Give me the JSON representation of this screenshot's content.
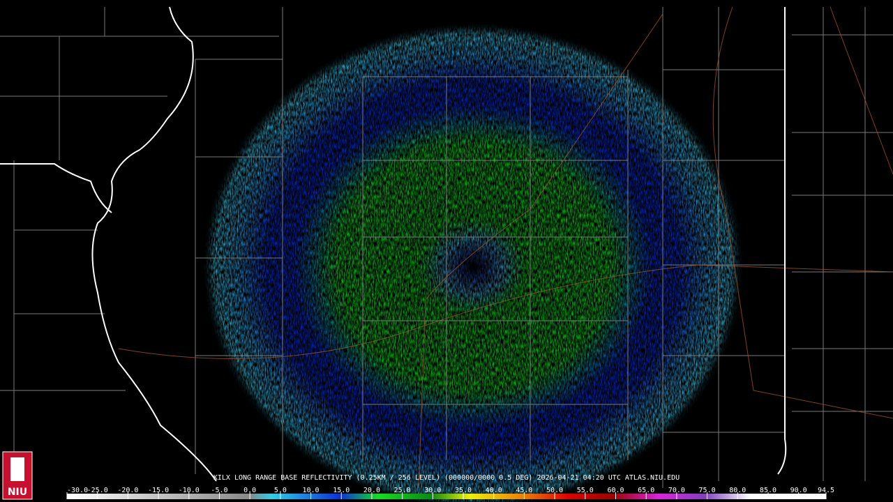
{
  "caption": "KILX LONG RANGE BASE REFLECTIVITY (0.25KM / 256 LEVEL) (000000/0000 0.5 DEG) 2026-04-21 04:20 UTC  ATLAS.NIU.EDU",
  "logo": "NIU",
  "colorbar": {
    "range": [
      -30,
      94.5
    ],
    "ticks": [
      {
        "value": -30,
        "label": "-30.0"
      },
      {
        "value": -25,
        "label": "-25.0"
      },
      {
        "value": -20,
        "label": "-20.0"
      },
      {
        "value": -15,
        "label": "-15.0"
      },
      {
        "value": -10,
        "label": "-10.0"
      },
      {
        "value": -5,
        "label": "-5.0"
      },
      {
        "value": 0,
        "label": "0.0"
      },
      {
        "value": 5,
        "label": "5.0"
      },
      {
        "value": 10,
        "label": "10.0"
      },
      {
        "value": 15,
        "label": "15.0"
      },
      {
        "value": 20,
        "label": "20.0"
      },
      {
        "value": 25,
        "label": "25.0"
      },
      {
        "value": 30,
        "label": "30.0"
      },
      {
        "value": 35,
        "label": "35.0"
      },
      {
        "value": 40,
        "label": "40.0"
      },
      {
        "value": 45,
        "label": "45.0"
      },
      {
        "value": 50,
        "label": "50.0"
      },
      {
        "value": 55,
        "label": "55.0"
      },
      {
        "value": 60,
        "label": "60.0"
      },
      {
        "value": 65,
        "label": "65.0"
      },
      {
        "value": 70,
        "label": "70.0"
      },
      {
        "value": 75,
        "label": "75.0"
      },
      {
        "value": 80,
        "label": "80.0"
      },
      {
        "value": 85,
        "label": "85.0"
      },
      {
        "value": 90,
        "label": "90.0"
      },
      {
        "value": 94.5,
        "label": "94.5"
      }
    ]
  }
}
